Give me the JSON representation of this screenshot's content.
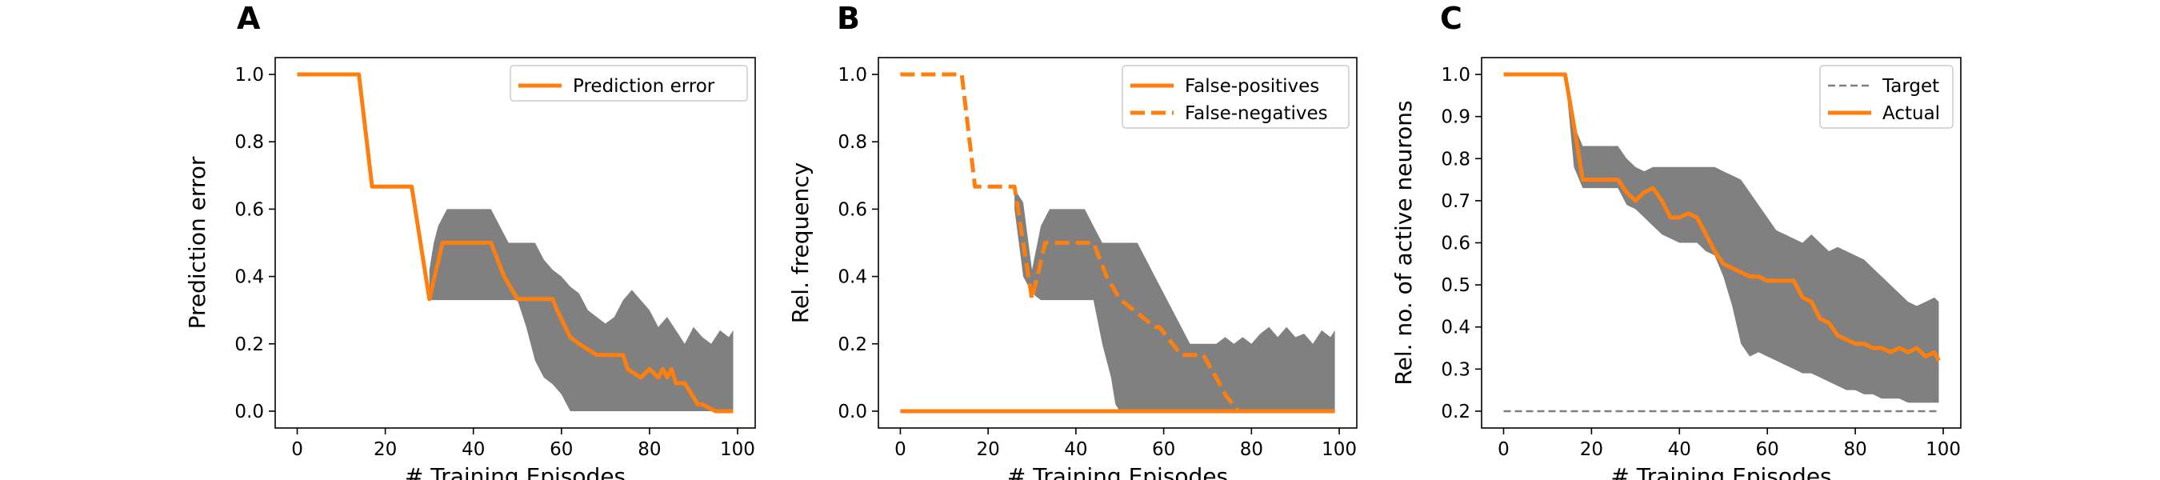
{
  "chart_data": [
    {
      "panel": "A",
      "type": "line",
      "xlabel": "# Training Episodes",
      "ylabel": "Prediction error",
      "xlim": [
        -5,
        104
      ],
      "ylim": [
        -0.05,
        1.05
      ],
      "xticks": [
        "0",
        "20",
        "40",
        "60",
        "80",
        "100"
      ],
      "xtick_values": [
        0,
        20,
        40,
        60,
        80,
        100
      ],
      "yticks": [
        "0.0",
        "0.2",
        "0.4",
        "0.6",
        "0.8",
        "1.0"
      ],
      "ytick_values": [
        0,
        0.2,
        0.4,
        0.6,
        0.8,
        1.0
      ],
      "legend": {
        "placement": "upper right",
        "entries": [
          {
            "label": "Prediction error",
            "style": "solid"
          }
        ]
      },
      "band": {
        "x": [
          30,
          31,
          32,
          34,
          36,
          38,
          40,
          42,
          44,
          46,
          48,
          50,
          52,
          54,
          56,
          58,
          60,
          62,
          64,
          66,
          68,
          70,
          72,
          74,
          76,
          78,
          80,
          82,
          84,
          86,
          88,
          90,
          92,
          94,
          96,
          98,
          99
        ],
        "upper": [
          0.42,
          0.5,
          0.55,
          0.6,
          0.6,
          0.6,
          0.6,
          0.6,
          0.6,
          0.55,
          0.5,
          0.5,
          0.5,
          0.5,
          0.45,
          0.42,
          0.4,
          0.37,
          0.35,
          0.3,
          0.28,
          0.26,
          0.28,
          0.33,
          0.36,
          0.33,
          0.3,
          0.25,
          0.28,
          0.24,
          0.2,
          0.25,
          0.22,
          0.2,
          0.24,
          0.22,
          0.24
        ],
        "lower": [
          0.33,
          0.33,
          0.33,
          0.33,
          0.33,
          0.33,
          0.33,
          0.33,
          0.33,
          0.33,
          0.33,
          0.33,
          0.25,
          0.15,
          0.1,
          0.08,
          0.05,
          0.0,
          0.0,
          0.0,
          0.0,
          0.0,
          0.0,
          0.0,
          0.0,
          0.0,
          0.0,
          0.0,
          0.0,
          0.0,
          0.0,
          0.0,
          0.0,
          0.0,
          0.0,
          0.0,
          0.0
        ]
      },
      "series": [
        {
          "name": "Prediction error",
          "style": "solid",
          "x": [
            0,
            14,
            17,
            26,
            30,
            33,
            44,
            47,
            50,
            58,
            59,
            62,
            64,
            68,
            74,
            75,
            78,
            80,
            82,
            83,
            84,
            85,
            86,
            88,
            91,
            92,
            95,
            99
          ],
          "y": [
            1.0,
            1.0,
            0.667,
            0.667,
            0.333,
            0.5,
            0.5,
            0.4,
            0.333,
            0.333,
            0.3,
            0.22,
            0.2,
            0.167,
            0.167,
            0.125,
            0.1,
            0.125,
            0.1,
            0.125,
            0.1,
            0.125,
            0.083,
            0.083,
            0.02,
            0.02,
            0.0,
            0.0
          ]
        }
      ]
    },
    {
      "panel": "B",
      "type": "line",
      "xlabel": "# Training Episodes",
      "ylabel": "Rel. frequency",
      "xlim": [
        -5,
        104
      ],
      "ylim": [
        -0.05,
        1.05
      ],
      "xticks": [
        "0",
        "20",
        "40",
        "60",
        "80",
        "100"
      ],
      "xtick_values": [
        0,
        20,
        40,
        60,
        80,
        100
      ],
      "yticks": [
        "0.0",
        "0.2",
        "0.4",
        "0.6",
        "0.8",
        "1.0"
      ],
      "ytick_values": [
        0,
        0.2,
        0.4,
        0.6,
        0.8,
        1.0
      ],
      "legend": {
        "placement": "upper right",
        "entries": [
          {
            "label": "False-positives",
            "style": "solid"
          },
          {
            "label": "False-negatives",
            "style": "dashed"
          }
        ]
      },
      "band": {
        "x": [
          26,
          28,
          30,
          32,
          34,
          36,
          38,
          40,
          42,
          44,
          46,
          48,
          49,
          50,
          52,
          54,
          56,
          58,
          60,
          62,
          64,
          66,
          68,
          70,
          72,
          74,
          76,
          78,
          80,
          82,
          84,
          86,
          88,
          90,
          92,
          94,
          96,
          98,
          99
        ],
        "upper": [
          0.66,
          0.62,
          0.42,
          0.55,
          0.6,
          0.6,
          0.6,
          0.6,
          0.6,
          0.55,
          0.5,
          0.5,
          0.5,
          0.5,
          0.5,
          0.5,
          0.45,
          0.4,
          0.35,
          0.3,
          0.25,
          0.2,
          0.2,
          0.2,
          0.2,
          0.22,
          0.2,
          0.22,
          0.2,
          0.23,
          0.25,
          0.22,
          0.25,
          0.22,
          0.23,
          0.2,
          0.24,
          0.22,
          0.24
        ],
        "lower": [
          0.6,
          0.4,
          0.35,
          0.33,
          0.33,
          0.33,
          0.33,
          0.33,
          0.33,
          0.33,
          0.2,
          0.1,
          0.02,
          0.0,
          0.0,
          0.0,
          0.0,
          0.0,
          0.0,
          0.0,
          0.0,
          0.0,
          0.0,
          0.0,
          0.0,
          0.0,
          0.0,
          0.0,
          0.0,
          0.0,
          0.0,
          0.0,
          0.0,
          0.0,
          0.0,
          0.0,
          0.0,
          0.0,
          0.0
        ]
      },
      "series": [
        {
          "name": "False-positives",
          "style": "solid",
          "x": [
            0,
            99
          ],
          "y": [
            0.0,
            0.0
          ]
        },
        {
          "name": "False-negatives",
          "style": "dashed",
          "x": [
            0,
            14,
            17,
            26,
            30,
            33,
            44,
            47,
            50,
            58,
            59,
            62,
            64,
            69,
            72,
            74,
            77,
            78,
            99
          ],
          "y": [
            1.0,
            1.0,
            0.667,
            0.667,
            0.333,
            0.5,
            0.5,
            0.4,
            0.333,
            0.25,
            0.25,
            0.2,
            0.167,
            0.167,
            0.1,
            0.05,
            0.0,
            0.0,
            0.0
          ]
        }
      ]
    },
    {
      "panel": "C",
      "type": "line",
      "xlabel": "# Training Episodes",
      "ylabel": "Rel. no. of active neurons",
      "xlim": [
        -5,
        104
      ],
      "ylim": [
        0.16,
        1.04
      ],
      "xticks": [
        "0",
        "20",
        "40",
        "60",
        "80",
        "100"
      ],
      "xtick_values": [
        0,
        20,
        40,
        60,
        80,
        100
      ],
      "yticks": [
        "0.2",
        "0.3",
        "0.4",
        "0.5",
        "0.6",
        "0.7",
        "0.8",
        "0.9",
        "1.0"
      ],
      "ytick_values": [
        0.2,
        0.3,
        0.4,
        0.5,
        0.6,
        0.7,
        0.8,
        0.9,
        1.0
      ],
      "legend": {
        "placement": "upper right",
        "entries": [
          {
            "label": "Target",
            "style": "dashed-gray"
          },
          {
            "label": "Actual",
            "style": "solid"
          }
        ]
      },
      "band": {
        "x": [
          14,
          16,
          18,
          20,
          24,
          26,
          28,
          30,
          32,
          34,
          36,
          38,
          40,
          42,
          44,
          46,
          48,
          50,
          52,
          54,
          56,
          58,
          60,
          62,
          64,
          66,
          68,
          70,
          72,
          74,
          76,
          78,
          80,
          82,
          84,
          86,
          88,
          90,
          92,
          94,
          96,
          98,
          99
        ],
        "upper": [
          1.0,
          0.88,
          0.83,
          0.83,
          0.83,
          0.83,
          0.8,
          0.78,
          0.77,
          0.78,
          0.78,
          0.78,
          0.78,
          0.78,
          0.78,
          0.78,
          0.78,
          0.77,
          0.76,
          0.75,
          0.72,
          0.69,
          0.66,
          0.63,
          0.62,
          0.61,
          0.6,
          0.62,
          0.6,
          0.58,
          0.59,
          0.58,
          0.57,
          0.56,
          0.54,
          0.52,
          0.5,
          0.48,
          0.46,
          0.45,
          0.46,
          0.47,
          0.46
        ],
        "lower": [
          1.0,
          0.78,
          0.73,
          0.73,
          0.73,
          0.73,
          0.69,
          0.68,
          0.66,
          0.64,
          0.62,
          0.61,
          0.6,
          0.6,
          0.6,
          0.58,
          0.57,
          0.52,
          0.45,
          0.36,
          0.33,
          0.34,
          0.33,
          0.32,
          0.31,
          0.3,
          0.29,
          0.29,
          0.28,
          0.27,
          0.26,
          0.25,
          0.25,
          0.24,
          0.24,
          0.23,
          0.23,
          0.23,
          0.22,
          0.22,
          0.22,
          0.22,
          0.22
        ]
      },
      "series": [
        {
          "name": "Target",
          "style": "dashed-gray",
          "x": [
            0,
            99
          ],
          "y": [
            0.2,
            0.2
          ]
        },
        {
          "name": "Actual",
          "style": "solid",
          "x": [
            0,
            14,
            16,
            18,
            22,
            24,
            26,
            28,
            30,
            32,
            34,
            36,
            38,
            40,
            42,
            44,
            46,
            48,
            50,
            52,
            54,
            56,
            58,
            60,
            62,
            64,
            66,
            68,
            70,
            72,
            74,
            76,
            78,
            80,
            82,
            84,
            86,
            88,
            90,
            92,
            94,
            96,
            98,
            99
          ],
          "y": [
            1.0,
            1.0,
            0.88,
            0.75,
            0.75,
            0.75,
            0.75,
            0.72,
            0.7,
            0.72,
            0.73,
            0.7,
            0.66,
            0.66,
            0.67,
            0.66,
            0.62,
            0.58,
            0.55,
            0.54,
            0.53,
            0.52,
            0.52,
            0.51,
            0.51,
            0.51,
            0.51,
            0.47,
            0.46,
            0.42,
            0.41,
            0.38,
            0.37,
            0.36,
            0.36,
            0.35,
            0.35,
            0.34,
            0.35,
            0.34,
            0.35,
            0.33,
            0.34,
            0.32
          ]
        }
      ]
    }
  ]
}
